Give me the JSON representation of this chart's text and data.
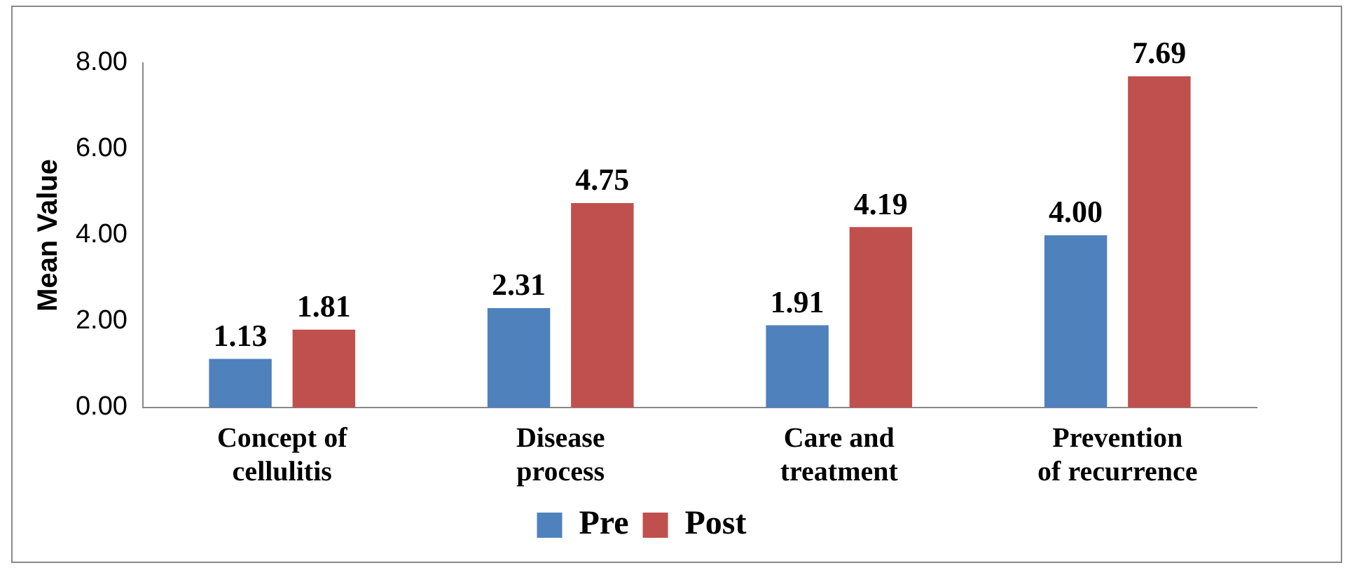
{
  "chart_data": {
    "type": "bar",
    "ylabel": "Mean Value",
    "categories": [
      "Concept of cellulitis",
      "Disease process",
      "Care and treatment",
      "Prevention of recurrence"
    ],
    "series": [
      {
        "name": "Pre",
        "color": "#4f81bd",
        "values": [
          1.13,
          2.31,
          1.91,
          4.0
        ],
        "value_labels": [
          "1.13",
          "2.31",
          "1.91",
          "4.00"
        ]
      },
      {
        "name": "Post",
        "color": "#c0504d",
        "values": [
          1.81,
          4.75,
          4.19,
          7.69
        ],
        "value_labels": [
          "1.81",
          "4.75",
          "4.19",
          "7.69"
        ]
      }
    ],
    "ylim": [
      0,
      8
    ],
    "yticks": [
      {
        "value": 0,
        "label": "0.00"
      },
      {
        "value": 2,
        "label": "2.00"
      },
      {
        "value": 4,
        "label": "4.00"
      },
      {
        "value": 6,
        "label": "6.00"
      },
      {
        "value": 8,
        "label": "8.00"
      }
    ],
    "grid": false,
    "legend": "bottom"
  }
}
